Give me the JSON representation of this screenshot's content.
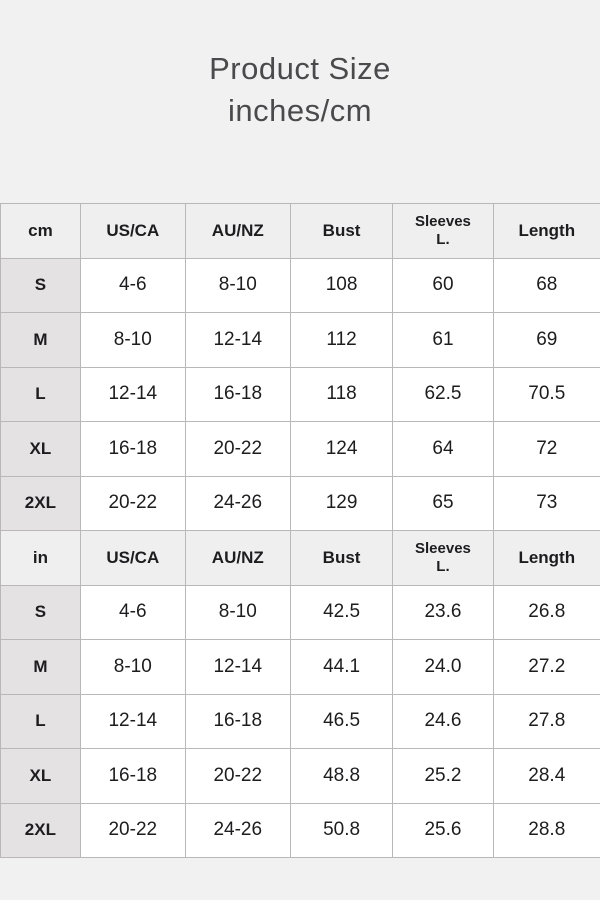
{
  "title": {
    "line1": "Product Size",
    "line2": "inches/cm"
  },
  "colors": {
    "page_background": "#f2f1f2",
    "header_cell_background": "#f0eff0",
    "size_cell_background": "#e4e2e3",
    "data_cell_background": "#ffffff",
    "border": "#b9b7b8",
    "title_text": "#4a4a4c",
    "cell_text": "#1d1d1f"
  },
  "chart_data": {
    "type": "table",
    "title": "Product Size inches/cm",
    "sections": [
      {
        "unit": "cm",
        "header": [
          "cm",
          "US/CA",
          "AU/NZ",
          "Bust",
          "Sleeves\nL.",
          "Length"
        ],
        "rows": [
          [
            "S",
            "4-6",
            "8-10",
            "108",
            "60",
            "68"
          ],
          [
            "M",
            "8-10",
            "12-14",
            "112",
            "61",
            "69"
          ],
          [
            "L",
            "12-14",
            "16-18",
            "118",
            "62.5",
            "70.5"
          ],
          [
            "XL",
            "16-18",
            "20-22",
            "124",
            "64",
            "72"
          ],
          [
            "2XL",
            "20-22",
            "24-26",
            "129",
            "65",
            "73"
          ]
        ]
      },
      {
        "unit": "in",
        "header": [
          "in",
          "US/CA",
          "AU/NZ",
          "Bust",
          "Sleeves\nL.",
          "Length"
        ],
        "rows": [
          [
            "S",
            "4-6",
            "8-10",
            "42.5",
            "23.6",
            "26.8"
          ],
          [
            "M",
            "8-10",
            "12-14",
            "44.1",
            "24.0",
            "27.2"
          ],
          [
            "L",
            "12-14",
            "16-18",
            "46.5",
            "24.6",
            "27.8"
          ],
          [
            "XL",
            "16-18",
            "20-22",
            "48.8",
            "25.2",
            "28.4"
          ],
          [
            "2XL",
            "20-22",
            "24-26",
            "50.8",
            "25.6",
            "28.8"
          ]
        ]
      }
    ],
    "column_widths_percent": [
      13.3,
      17.5,
      17.5,
      17.1,
      16.7,
      17.9
    ]
  }
}
